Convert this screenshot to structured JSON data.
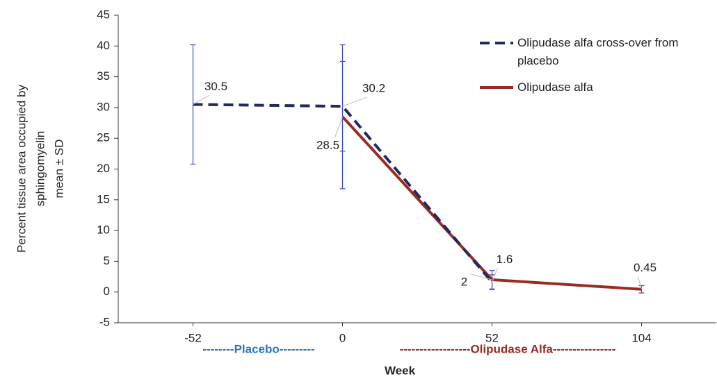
{
  "chart_data": {
    "type": "line",
    "ylabel": [
      "Percent tissue area occupied by",
      "sphingomyelin",
      "mean ± SD"
    ],
    "xlabel": "Week",
    "x": [
      -52,
      0,
      52,
      104
    ],
    "xlim": [
      -78,
      130
    ],
    "xticks": [
      -52,
      0,
      52,
      104
    ],
    "ylim": [
      -5,
      45
    ],
    "yticks": [
      -5,
      0,
      5,
      10,
      15,
      20,
      25,
      30,
      35,
      40,
      45
    ],
    "legend": "top-right",
    "error_color": "#3a4dbf",
    "series": [
      {
        "name": "Olipudase alfa cross-over from placebo",
        "color": "#1f2a5e",
        "dash": true,
        "values": [
          30.5,
          30.2,
          1.6,
          null
        ],
        "errors": [
          9.7,
          7.3,
          1.2,
          null
        ]
      },
      {
        "name": "Olipudase alfa",
        "color": "#9b2a23",
        "dash": false,
        "values": [
          null,
          28.5,
          2,
          0.45
        ],
        "errors": [
          null,
          11.7,
          1.5,
          0.6
        ]
      }
    ],
    "annotations": [
      {
        "text": "--------Placebo---------",
        "color": "#2e75b6"
      },
      {
        "text": "------------------Olipudase Alfa----------------",
        "color": "#9b2a23"
      }
    ]
  }
}
